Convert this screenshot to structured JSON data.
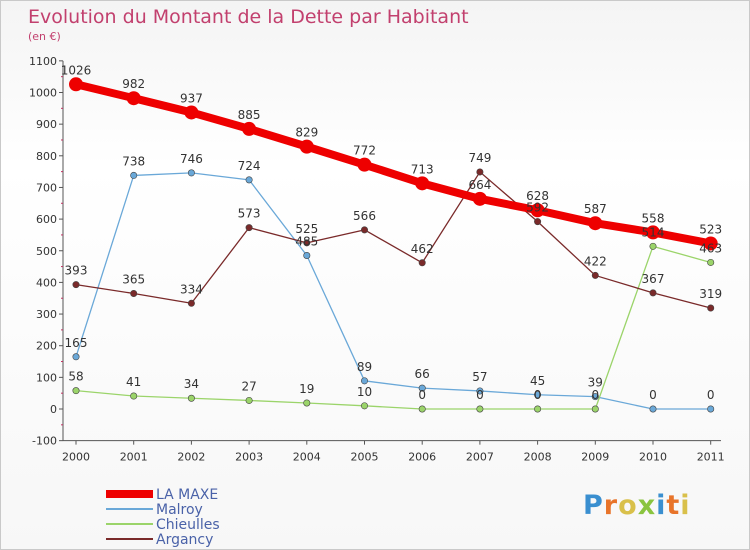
{
  "header": {
    "title": "Evolution du Montant de la Dette par Habitant",
    "subtitle": "(en €)"
  },
  "logo": {
    "text": "Proxiti",
    "colors": [
      "#3a8fd0",
      "#e8742a",
      "#d9c04a",
      "#8ac43f"
    ]
  },
  "chart_data": {
    "type": "line",
    "categories": [
      "2000",
      "2001",
      "2002",
      "2003",
      "2004",
      "2005",
      "2006",
      "2007",
      "2008",
      "2009",
      "2010",
      "2011"
    ],
    "ylim": [
      -100,
      1100
    ],
    "yticks": [
      -100,
      0,
      100,
      200,
      300,
      400,
      500,
      600,
      700,
      800,
      900,
      1000,
      1100
    ],
    "grid": false,
    "legend_position": "bottom-left",
    "series": [
      {
        "name": "LA MAXE",
        "color": "#ee0000",
        "values": [
          1026,
          982,
          937,
          885,
          829,
          772,
          713,
          664,
          628,
          587,
          558,
          523
        ]
      },
      {
        "name": "Malroy",
        "color": "#6aa8d8",
        "values": [
          165,
          738,
          746,
          724,
          485,
          89,
          66,
          57,
          45,
          39,
          0,
          0
        ]
      },
      {
        "name": "Chieulles",
        "color": "#9bd46a",
        "values": [
          58,
          41,
          34,
          27,
          19,
          10,
          0,
          0,
          0,
          0,
          514,
          463
        ]
      },
      {
        "name": "Argancy",
        "color": "#7a2a2a",
        "values": [
          393,
          365,
          334,
          573,
          525,
          566,
          462,
          749,
          592,
          422,
          367,
          319
        ]
      }
    ]
  }
}
